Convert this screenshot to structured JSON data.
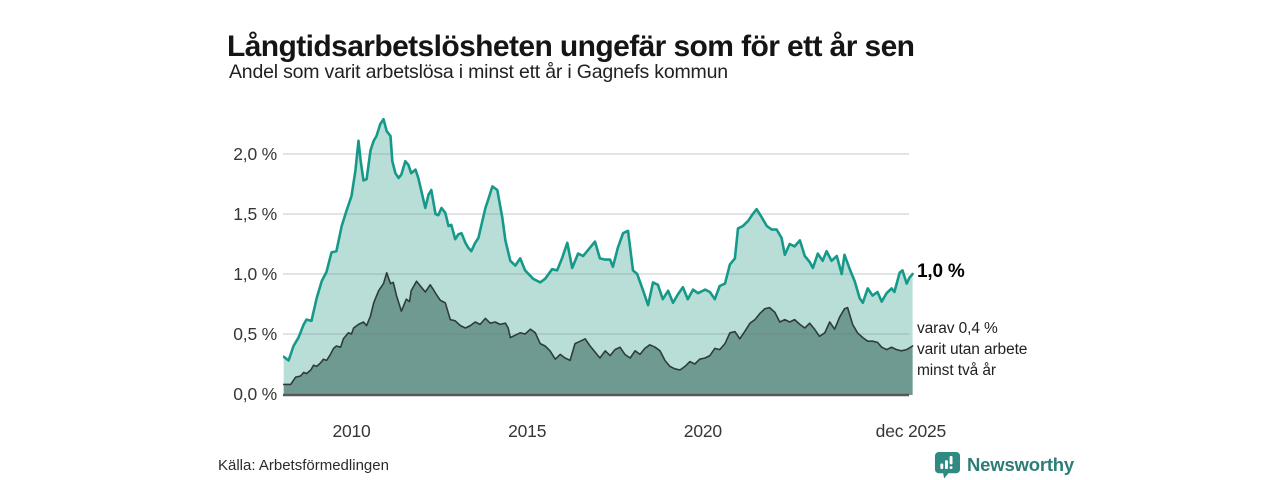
{
  "header": {
    "title": "Långtidsarbetslösheten ungefär som för ett år sen",
    "subtitle": "Andel som varit arbetslösa i minst ett år i Gagnefs kommun"
  },
  "source": {
    "label": "Källa: Arbetsförmedlingen"
  },
  "branding": {
    "logo_text": "Newsworthy",
    "logo_color": "#2f8a81",
    "wordmark_color": "#2c7d77"
  },
  "chart_data": {
    "type": "area",
    "title": "Långtidsarbetslösheten ungefär som för ett år sen",
    "subtitle": "Andel som varit arbetslösa i minst ett år i Gagnefs kommun",
    "grid": true,
    "legend_position": "none",
    "colors": {
      "total_line": "#17998a",
      "total_fill": "#b9ded8",
      "two_year_line": "#2e3d3a",
      "two_year_fill": "#6f9a92",
      "gridline": "rgba(106,116,126,0.25)",
      "baseline": "#58585a"
    },
    "x_axis": {
      "range": [
        2008.05,
        2025.98
      ],
      "ticks": [
        {
          "label": "2010",
          "value": 2010
        },
        {
          "label": "2015",
          "value": 2015
        },
        {
          "label": "2020",
          "value": 2020
        },
        {
          "label": "dec 2025",
          "value": 2025.92
        }
      ]
    },
    "y_axis": {
      "unit": "%",
      "range": [
        0,
        2.35
      ],
      "gridlines": [
        0.5,
        1.0,
        1.5,
        2.0
      ],
      "ticks": [
        {
          "label": "2,0 %",
          "value": 2.0
        },
        {
          "label": "1,5 %",
          "value": 1.5
        },
        {
          "label": "1,0 %",
          "value": 1.0
        },
        {
          "label": "0,5 %",
          "value": 0.5
        },
        {
          "label": "0,0 %",
          "value": 0.0
        }
      ]
    },
    "annotations": {
      "latest": {
        "text": "1,0 %",
        "value": 1.0
      },
      "two_year": {
        "lines": [
          "varav 0,4 %",
          "varit utan arbete",
          "minst två år"
        ],
        "value": 0.4
      }
    },
    "series": [
      {
        "name": "Andel arbetslösa minst ett år",
        "points": [
          [
            2008.07,
            0.31
          ],
          [
            2008.21,
            0.28
          ],
          [
            2008.35,
            0.4
          ],
          [
            2008.49,
            0.47
          ],
          [
            2008.64,
            0.58
          ],
          [
            2008.72,
            0.62
          ],
          [
            2008.86,
            0.61
          ],
          [
            2009.01,
            0.8
          ],
          [
            2009.15,
            0.94
          ],
          [
            2009.29,
            1.02
          ],
          [
            2009.43,
            1.18
          ],
          [
            2009.57,
            1.19
          ],
          [
            2009.72,
            1.4
          ],
          [
            2009.86,
            1.53
          ],
          [
            2010.0,
            1.65
          ],
          [
            2010.11,
            1.86
          ],
          [
            2010.2,
            2.11
          ],
          [
            2010.26,
            1.94
          ],
          [
            2010.34,
            1.78
          ],
          [
            2010.43,
            1.79
          ],
          [
            2010.54,
            2.03
          ],
          [
            2010.63,
            2.11
          ],
          [
            2010.71,
            2.15
          ],
          [
            2010.82,
            2.25
          ],
          [
            2010.91,
            2.29
          ],
          [
            2011.0,
            2.19
          ],
          [
            2011.11,
            2.15
          ],
          [
            2011.16,
            1.94
          ],
          [
            2011.25,
            1.84
          ],
          [
            2011.34,
            1.8
          ],
          [
            2011.42,
            1.83
          ],
          [
            2011.53,
            1.94
          ],
          [
            2011.62,
            1.91
          ],
          [
            2011.7,
            1.84
          ],
          [
            2011.82,
            1.87
          ],
          [
            2011.9,
            1.8
          ],
          [
            2011.99,
            1.69
          ],
          [
            2012.1,
            1.55
          ],
          [
            2012.19,
            1.66
          ],
          [
            2012.27,
            1.7
          ],
          [
            2012.39,
            1.5
          ],
          [
            2012.47,
            1.49
          ],
          [
            2012.56,
            1.55
          ],
          [
            2012.67,
            1.51
          ],
          [
            2012.76,
            1.4
          ],
          [
            2012.84,
            1.41
          ],
          [
            2012.95,
            1.29
          ],
          [
            2013.04,
            1.33
          ],
          [
            2013.13,
            1.34
          ],
          [
            2013.24,
            1.26
          ],
          [
            2013.32,
            1.22
          ],
          [
            2013.41,
            1.19
          ],
          [
            2013.52,
            1.26
          ],
          [
            2013.61,
            1.3
          ],
          [
            2013.69,
            1.4
          ],
          [
            2013.81,
            1.55
          ],
          [
            2013.89,
            1.62
          ],
          [
            2014.01,
            1.73
          ],
          [
            2014.15,
            1.7
          ],
          [
            2014.29,
            1.47
          ],
          [
            2014.38,
            1.28
          ],
          [
            2014.52,
            1.11
          ],
          [
            2014.66,
            1.07
          ],
          [
            2014.8,
            1.13
          ],
          [
            2014.94,
            1.03
          ],
          [
            2015.17,
            0.96
          ],
          [
            2015.37,
            0.93
          ],
          [
            2015.51,
            0.96
          ],
          [
            2015.71,
            1.04
          ],
          [
            2015.85,
            1.03
          ],
          [
            2015.99,
            1.13
          ],
          [
            2016.14,
            1.26
          ],
          [
            2016.28,
            1.05
          ],
          [
            2016.45,
            1.17
          ],
          [
            2016.59,
            1.15
          ],
          [
            2016.79,
            1.22
          ],
          [
            2016.93,
            1.27
          ],
          [
            2017.07,
            1.13
          ],
          [
            2017.22,
            1.12
          ],
          [
            2017.36,
            1.12
          ],
          [
            2017.44,
            1.06
          ],
          [
            2017.58,
            1.22
          ],
          [
            2017.73,
            1.34
          ],
          [
            2017.87,
            1.36
          ],
          [
            2018.01,
            1.03
          ],
          [
            2018.13,
            1.0
          ],
          [
            2018.3,
            0.86
          ],
          [
            2018.44,
            0.74
          ],
          [
            2018.58,
            0.93
          ],
          [
            2018.72,
            0.91
          ],
          [
            2018.86,
            0.79
          ],
          [
            2019.01,
            0.86
          ],
          [
            2019.15,
            0.76
          ],
          [
            2019.29,
            0.83
          ],
          [
            2019.43,
            0.89
          ],
          [
            2019.57,
            0.79
          ],
          [
            2019.72,
            0.87
          ],
          [
            2019.86,
            0.84
          ],
          [
            2020.06,
            0.87
          ],
          [
            2020.2,
            0.85
          ],
          [
            2020.34,
            0.79
          ],
          [
            2020.48,
            0.9
          ],
          [
            2020.63,
            0.92
          ],
          [
            2020.77,
            1.08
          ],
          [
            2020.91,
            1.13
          ],
          [
            2021.0,
            1.38
          ],
          [
            2021.14,
            1.4
          ],
          [
            2021.28,
            1.44
          ],
          [
            2021.42,
            1.5
          ],
          [
            2021.53,
            1.54
          ],
          [
            2021.68,
            1.47
          ],
          [
            2021.82,
            1.4
          ],
          [
            2021.96,
            1.37
          ],
          [
            2022.1,
            1.37
          ],
          [
            2022.24,
            1.3
          ],
          [
            2022.33,
            1.16
          ],
          [
            2022.47,
            1.25
          ],
          [
            2022.61,
            1.23
          ],
          [
            2022.76,
            1.28
          ],
          [
            2022.9,
            1.15
          ],
          [
            2023.04,
            1.1
          ],
          [
            2023.13,
            1.05
          ],
          [
            2023.27,
            1.17
          ],
          [
            2023.41,
            1.11
          ],
          [
            2023.52,
            1.19
          ],
          [
            2023.66,
            1.11
          ],
          [
            2023.81,
            1.15
          ],
          [
            2023.95,
            1.0
          ],
          [
            2024.03,
            1.16
          ],
          [
            2024.18,
            1.04
          ],
          [
            2024.32,
            0.94
          ],
          [
            2024.46,
            0.8
          ],
          [
            2024.55,
            0.76
          ],
          [
            2024.69,
            0.88
          ],
          [
            2024.83,
            0.82
          ],
          [
            2024.97,
            0.85
          ],
          [
            2025.09,
            0.77
          ],
          [
            2025.23,
            0.84
          ],
          [
            2025.37,
            0.88
          ],
          [
            2025.45,
            0.85
          ],
          [
            2025.6,
            1.01
          ],
          [
            2025.68,
            1.03
          ],
          [
            2025.8,
            0.92
          ],
          [
            2025.88,
            0.97
          ],
          [
            2025.97,
            1.0
          ]
        ]
      },
      {
        "name": "Varav utan arbete minst två år",
        "points": [
          [
            2008.07,
            0.08
          ],
          [
            2008.27,
            0.08
          ],
          [
            2008.41,
            0.14
          ],
          [
            2008.55,
            0.15
          ],
          [
            2008.64,
            0.18
          ],
          [
            2008.72,
            0.17
          ],
          [
            2008.84,
            0.2
          ],
          [
            2008.92,
            0.24
          ],
          [
            2009.01,
            0.23
          ],
          [
            2009.12,
            0.26
          ],
          [
            2009.2,
            0.29
          ],
          [
            2009.29,
            0.28
          ],
          [
            2009.4,
            0.33
          ],
          [
            2009.49,
            0.38
          ],
          [
            2009.57,
            0.4
          ],
          [
            2009.69,
            0.39
          ],
          [
            2009.77,
            0.46
          ],
          [
            2009.91,
            0.51
          ],
          [
            2010.0,
            0.5
          ],
          [
            2010.06,
            0.55
          ],
          [
            2010.2,
            0.58
          ],
          [
            2010.34,
            0.6
          ],
          [
            2010.43,
            0.57
          ],
          [
            2010.54,
            0.65
          ],
          [
            2010.63,
            0.76
          ],
          [
            2010.77,
            0.86
          ],
          [
            2010.91,
            0.92
          ],
          [
            2011.0,
            1.01
          ],
          [
            2011.11,
            0.92
          ],
          [
            2011.19,
            0.93
          ],
          [
            2011.28,
            0.82
          ],
          [
            2011.42,
            0.69
          ],
          [
            2011.56,
            0.79
          ],
          [
            2011.65,
            0.77
          ],
          [
            2011.7,
            0.86
          ],
          [
            2011.85,
            0.94
          ],
          [
            2011.99,
            0.89
          ],
          [
            2012.1,
            0.85
          ],
          [
            2012.24,
            0.91
          ],
          [
            2012.33,
            0.87
          ],
          [
            2012.39,
            0.84
          ],
          [
            2012.53,
            0.78
          ],
          [
            2012.67,
            0.76
          ],
          [
            2012.81,
            0.62
          ],
          [
            2012.95,
            0.61
          ],
          [
            2013.1,
            0.57
          ],
          [
            2013.24,
            0.55
          ],
          [
            2013.38,
            0.57
          ],
          [
            2013.52,
            0.6
          ],
          [
            2013.66,
            0.58
          ],
          [
            2013.81,
            0.63
          ],
          [
            2013.95,
            0.59
          ],
          [
            2014.09,
            0.6
          ],
          [
            2014.23,
            0.58
          ],
          [
            2014.38,
            0.59
          ],
          [
            2014.46,
            0.55
          ],
          [
            2014.52,
            0.47
          ],
          [
            2014.66,
            0.49
          ],
          [
            2014.8,
            0.51
          ],
          [
            2014.94,
            0.5
          ],
          [
            2015.09,
            0.54
          ],
          [
            2015.23,
            0.51
          ],
          [
            2015.37,
            0.42
          ],
          [
            2015.51,
            0.4
          ],
          [
            2015.65,
            0.36
          ],
          [
            2015.8,
            0.29
          ],
          [
            2015.94,
            0.33
          ],
          [
            2016.08,
            0.3
          ],
          [
            2016.22,
            0.28
          ],
          [
            2016.36,
            0.42
          ],
          [
            2016.51,
            0.44
          ],
          [
            2016.65,
            0.46
          ],
          [
            2016.79,
            0.4
          ],
          [
            2016.93,
            0.35
          ],
          [
            2017.07,
            0.3
          ],
          [
            2017.22,
            0.36
          ],
          [
            2017.36,
            0.32
          ],
          [
            2017.5,
            0.37
          ],
          [
            2017.64,
            0.39
          ],
          [
            2017.78,
            0.33
          ],
          [
            2017.93,
            0.3
          ],
          [
            2018.07,
            0.36
          ],
          [
            2018.21,
            0.33
          ],
          [
            2018.35,
            0.38
          ],
          [
            2018.49,
            0.41
          ],
          [
            2018.64,
            0.39
          ],
          [
            2018.78,
            0.36
          ],
          [
            2018.92,
            0.28
          ],
          [
            2019.06,
            0.23
          ],
          [
            2019.2,
            0.21
          ],
          [
            2019.35,
            0.2
          ],
          [
            2019.49,
            0.23
          ],
          [
            2019.63,
            0.27
          ],
          [
            2019.77,
            0.25
          ],
          [
            2019.91,
            0.29
          ],
          [
            2020.06,
            0.3
          ],
          [
            2020.2,
            0.32
          ],
          [
            2020.34,
            0.38
          ],
          [
            2020.48,
            0.37
          ],
          [
            2020.63,
            0.42
          ],
          [
            2020.77,
            0.51
          ],
          [
            2020.91,
            0.52
          ],
          [
            2021.05,
            0.46
          ],
          [
            2021.19,
            0.52
          ],
          [
            2021.34,
            0.59
          ],
          [
            2021.48,
            0.62
          ],
          [
            2021.62,
            0.67
          ],
          [
            2021.76,
            0.71
          ],
          [
            2021.9,
            0.72
          ],
          [
            2022.05,
            0.68
          ],
          [
            2022.19,
            0.6
          ],
          [
            2022.33,
            0.62
          ],
          [
            2022.47,
            0.6
          ],
          [
            2022.61,
            0.62
          ],
          [
            2022.76,
            0.58
          ],
          [
            2022.9,
            0.55
          ],
          [
            2023.04,
            0.59
          ],
          [
            2023.18,
            0.54
          ],
          [
            2023.32,
            0.48
          ],
          [
            2023.47,
            0.51
          ],
          [
            2023.61,
            0.6
          ],
          [
            2023.75,
            0.54
          ],
          [
            2023.89,
            0.64
          ],
          [
            2024.03,
            0.71
          ],
          [
            2024.12,
            0.72
          ],
          [
            2024.26,
            0.58
          ],
          [
            2024.4,
            0.51
          ],
          [
            2024.55,
            0.47
          ],
          [
            2024.69,
            0.44
          ],
          [
            2024.83,
            0.44
          ],
          [
            2024.97,
            0.43
          ],
          [
            2025.09,
            0.39
          ],
          [
            2025.23,
            0.37
          ],
          [
            2025.37,
            0.39
          ],
          [
            2025.51,
            0.37
          ],
          [
            2025.65,
            0.36
          ],
          [
            2025.8,
            0.37
          ],
          [
            2025.97,
            0.4
          ]
        ]
      }
    ]
  }
}
